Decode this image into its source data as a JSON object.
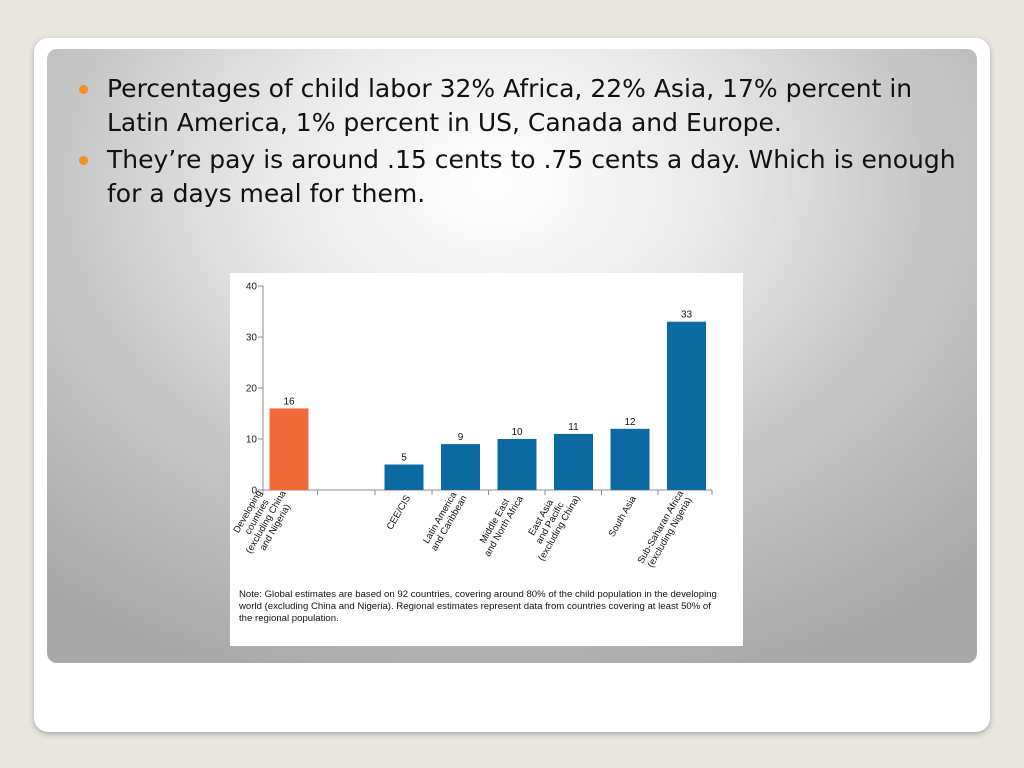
{
  "bullets": [
    "Percentages of child labor 32% Africa, 22% Asia, 17% percent in Latin America, 1% percent in US, Canada and Europe.",
    "They’re  pay is around .15 cents to .75 cents a day. Which is enough for a days meal for them."
  ],
  "colors": {
    "bullet_accent": "#f5901e",
    "highlight_bar": "#f26a3a",
    "regional_bar": "#0b6aa1"
  },
  "chart_data": {
    "type": "bar",
    "categories": [
      "Developing countries (excluding China and Nigeria)",
      "CEE/CIS",
      "Latin America and Caribbean",
      "Middle East and North Africa",
      "East Asia and Pacific (excluding China)",
      "South Asia",
      "Sub-Saharan Africa (excluding Nigeria)"
    ],
    "category_lines": [
      [
        "Developing",
        "countries",
        "(excluding China",
        "and Nigeria)"
      ],
      [
        "CEE/CIS"
      ],
      [
        "Latin America",
        "and Caribbean"
      ],
      [
        "Middle East",
        "and North Africa"
      ],
      [
        "East Asia",
        "and Pacific",
        "(excluding China)"
      ],
      [
        "South Asia"
      ],
      [
        "Sub-Saharan Africa",
        "(excluding Nigeria)"
      ]
    ],
    "values": [
      16,
      5,
      9,
      10,
      11,
      12,
      33
    ],
    "value_labels": [
      "16",
      "5",
      "9",
      "10",
      "11",
      "12",
      "33"
    ],
    "highlighted_category_index": 0,
    "ylim": [
      0,
      40
    ],
    "yticks": [
      0,
      10,
      20,
      30,
      40
    ],
    "grid": false,
    "xlabel": "",
    "ylabel": "",
    "title": "",
    "note": "Note: Global estimates are based on 92 countries, covering around 80% of the child population in the developing world (excluding China and Nigeria). Regional estimates represent data from countries covering at least 50% of the regional population."
  }
}
